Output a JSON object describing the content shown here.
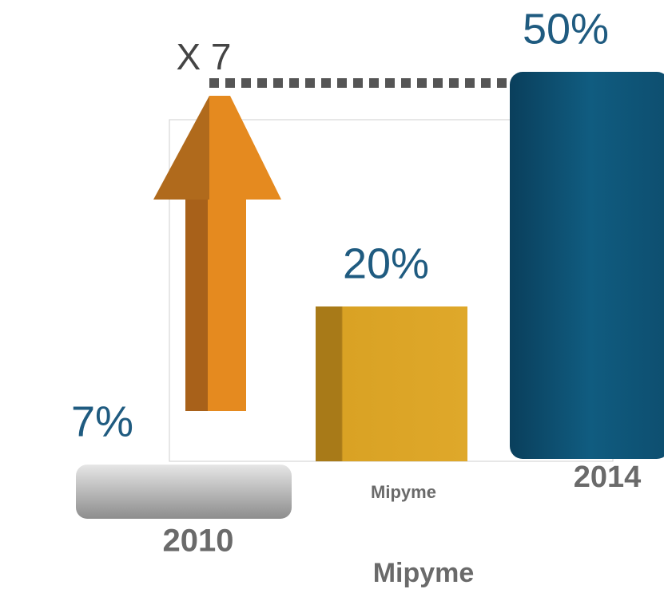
{
  "chart_data": {
    "type": "bar",
    "categories": [
      "2010",
      "Mipyme",
      "2014"
    ],
    "values": [
      7,
      20,
      50
    ],
    "value_labels": [
      "7%",
      "20%",
      "50%"
    ],
    "colors": [
      "#a3a3a3",
      "#d9a224",
      "#0f5a7e"
    ],
    "xlabel": "Mipyme",
    "annotation": "X 7"
  }
}
